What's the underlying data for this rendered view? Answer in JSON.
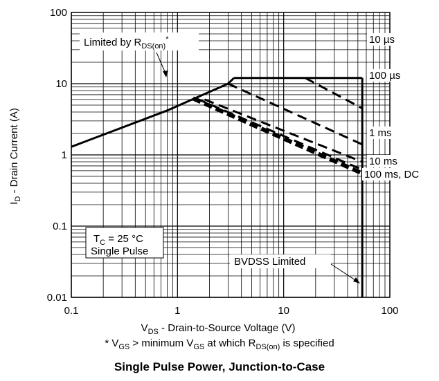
{
  "chart_data": {
    "type": "line",
    "title": "Single Pulse Power, Junction-to-Case",
    "xlabel": {
      "main": "V",
      "sub": "DS",
      "rest": " - Drain-to-Source Voltage (V)"
    },
    "ylabel": {
      "main": "I",
      "sub": "D",
      "rest": " - Drain Current (A)"
    },
    "x_scale": "log",
    "y_scale": "log",
    "xlim": [
      0.1,
      100
    ],
    "ylim": [
      0.01,
      100
    ],
    "x_ticks": [
      "0.1",
      "1",
      "10",
      "100"
    ],
    "y_ticks": [
      "0.01",
      "0.1",
      "1",
      "10",
      "100"
    ],
    "grid": true,
    "footnote": {
      "p1": "* V",
      "s1": "GS",
      "p2": " > minimum V",
      "s2": "GS",
      "p3": " at which R",
      "s3": "DS(on)",
      "p4": " is specified"
    },
    "series": [
      {
        "name": "Limited by RDS(on)",
        "style": "solid",
        "points": [
          [
            0.1,
            1.3
          ],
          [
            0.8,
            4.2
          ],
          [
            3.0,
            10
          ],
          [
            3.4,
            12
          ]
        ]
      },
      {
        "name": "10 µs",
        "style": "solid",
        "points": [
          [
            3.4,
            12
          ],
          [
            55,
            12
          ]
        ]
      },
      {
        "name": "BVDSS Limited",
        "style": "solid",
        "points": [
          [
            55,
            12
          ],
          [
            55,
            0.01
          ]
        ]
      },
      {
        "name": "10 µs",
        "style": "dash",
        "points": [
          [
            16,
            12
          ],
          [
            55,
            4.5
          ]
        ]
      },
      {
        "name": "100 µs",
        "style": "dash",
        "points": [
          [
            3.0,
            10
          ],
          [
            55,
            1.4
          ]
        ]
      },
      {
        "name": "1 ms",
        "style": "dash",
        "points": [
          [
            1.8,
            6.0
          ],
          [
            55,
            0.8
          ]
        ]
      },
      {
        "name": "10 ms",
        "style": "dash",
        "points": [
          [
            1.5,
            6.2
          ],
          [
            55,
            0.62
          ]
        ]
      },
      {
        "name": "100 ms, DC",
        "style": "dash-heavy",
        "points": [
          [
            1.4,
            6.2
          ],
          [
            55,
            0.55
          ]
        ]
      }
    ],
    "annotations": {
      "rds": {
        "p1": "Limited by R",
        "s1": "DS(on)",
        "p2": "*"
      },
      "curve_labels": [
        "10 µs",
        "100 µs",
        "1 ms",
        "10 ms",
        "100 ms, DC"
      ],
      "condition": {
        "p1": "T",
        "s1": "C",
        "p2": " = 25 °C",
        "line2": "Single Pulse"
      },
      "bvdss": "BVDSS Limited"
    }
  }
}
